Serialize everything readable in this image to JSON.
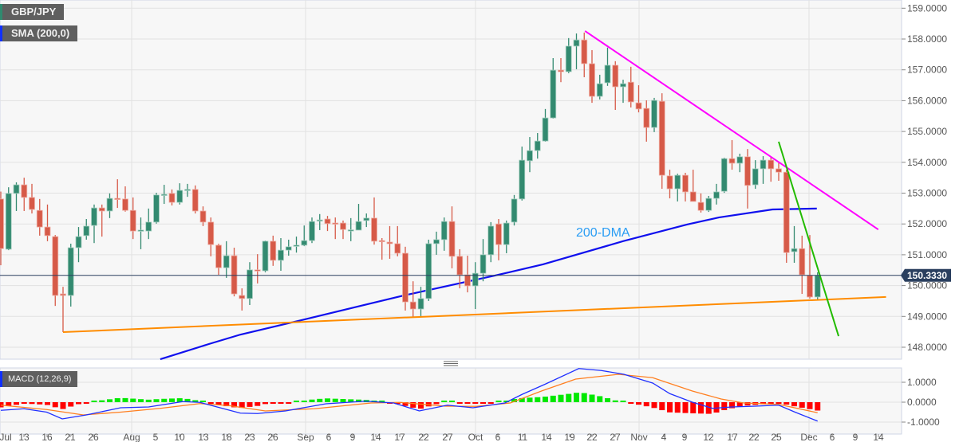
{
  "header": {
    "symbol": "GBP/JPY",
    "indicator_label": "SMA (200,0)",
    "macd_label": "MACD (12,26,9)"
  },
  "chart_data": [
    {
      "type": "candlestick",
      "symbol": "GBP/JPY",
      "y_ticks": [
        "159.0000",
        "158.0000",
        "157.0000",
        "156.0000",
        "155.0000",
        "154.0000",
        "153.0000",
        "152.0000",
        "151.0000",
        "150.0000",
        "149.0000",
        "148.0000"
      ],
      "ylim": [
        147.6,
        159.2
      ],
      "current_price": "150.3330",
      "grid": true,
      "x_ticks": [
        "Jul",
        "13",
        "16",
        "21",
        "26",
        "Aug",
        "5",
        "10",
        "13",
        "18",
        "23",
        "26",
        "Sep",
        "6",
        "9",
        "14",
        "17",
        "22",
        "27",
        "Oct",
        "6",
        "11",
        "14",
        "19",
        "22",
        "27",
        "Nov",
        "4",
        "9",
        "12",
        "17",
        "22",
        "25",
        "Dec",
        "6",
        "9",
        "14"
      ],
      "ohlc_columns": [
        "open",
        "high",
        "low",
        "close"
      ],
      "ohlc": [
        [
          152.81,
          153.05,
          150.66,
          151.2
        ],
        [
          151.18,
          153.19,
          151.15,
          152.99
        ],
        [
          152.99,
          153.35,
          152.42,
          153.27
        ],
        [
          153.27,
          153.5,
          152.42,
          152.86
        ],
        [
          152.86,
          153.3,
          152.34,
          152.47
        ],
        [
          152.44,
          152.81,
          151.62,
          151.9
        ],
        [
          151.9,
          152.63,
          151.44,
          151.62
        ],
        [
          151.59,
          151.64,
          149.34,
          149.68
        ],
        [
          149.73,
          149.96,
          148.49,
          149.68
        ],
        [
          149.68,
          151.36,
          149.32,
          151.23
        ],
        [
          151.23,
          151.9,
          150.76,
          151.59
        ],
        [
          151.62,
          152.16,
          151.49,
          151.93
        ],
        [
          151.95,
          152.63,
          151.38,
          152.52
        ],
        [
          152.52,
          152.63,
          151.59,
          152.42
        ],
        [
          152.42,
          152.99,
          152.19,
          152.83
        ],
        [
          152.83,
          153.45,
          152.52,
          152.81
        ],
        [
          152.81,
          153.22,
          152.4,
          152.44
        ],
        [
          152.44,
          152.86,
          151.51,
          151.77
        ],
        [
          151.77,
          152.21,
          151.18,
          151.8
        ],
        [
          151.77,
          152.5,
          151.51,
          152.06
        ],
        [
          152.06,
          153.01,
          152.01,
          152.94
        ],
        [
          152.94,
          153.27,
          152.65,
          152.96
        ],
        [
          152.99,
          153.12,
          152.6,
          152.7
        ],
        [
          152.7,
          153.32,
          152.63,
          153.09
        ],
        [
          153.09,
          153.3,
          152.88,
          153.12
        ],
        [
          153.12,
          153.25,
          152.34,
          152.42
        ],
        [
          152.42,
          152.57,
          151.93,
          152.06
        ],
        [
          152.06,
          152.21,
          150.95,
          151.33
        ],
        [
          151.31,
          151.36,
          150.35,
          150.58
        ],
        [
          150.58,
          151.44,
          150.25,
          150.97
        ],
        [
          150.97,
          151.23,
          149.65,
          149.73
        ],
        [
          149.68,
          149.91,
          149.19,
          149.58
        ],
        [
          149.58,
          150.76,
          149.37,
          150.51
        ],
        [
          150.51,
          151.02,
          150.07,
          150.48
        ],
        [
          150.48,
          151.46,
          150.43,
          151.44
        ],
        [
          151.44,
          151.62,
          150.64,
          150.82
        ],
        [
          150.82,
          151.54,
          150.48,
          151.15
        ],
        [
          151.15,
          151.49,
          150.97,
          151.26
        ],
        [
          151.28,
          151.59,
          151.07,
          151.31
        ],
        [
          151.31,
          151.95,
          151.28,
          151.46
        ],
        [
          151.46,
          152.21,
          151.38,
          152.08
        ],
        [
          152.11,
          152.32,
          151.8,
          152.13
        ],
        [
          152.16,
          152.26,
          151.77,
          152.01
        ],
        [
          152.03,
          152.21,
          151.51,
          152.02
        ],
        [
          152.03,
          152.11,
          151.51,
          151.82
        ],
        [
          151.8,
          152.19,
          151.44,
          151.81
        ],
        [
          151.8,
          152.65,
          151.8,
          152.08
        ],
        [
          152.11,
          152.34,
          151.9,
          152.19
        ],
        [
          152.19,
          152.86,
          151.33,
          151.44
        ],
        [
          151.46,
          151.54,
          150.84,
          151.44
        ],
        [
          151.41,
          151.93,
          150.87,
          151.36
        ],
        [
          151.36,
          151.93,
          150.95,
          151.05
        ],
        [
          151.05,
          151.26,
          149.19,
          149.47
        ],
        [
          149.47,
          150.14,
          148.98,
          149.24
        ],
        [
          149.24,
          149.96,
          149.01,
          149.58
        ],
        [
          149.58,
          151.49,
          149.5,
          151.36
        ],
        [
          151.36,
          151.75,
          151.0,
          151.49
        ],
        [
          151.49,
          152.21,
          151.13,
          152.08
        ],
        [
          152.08,
          152.57,
          150.56,
          150.95
        ],
        [
          150.95,
          151.18,
          149.91,
          150.35
        ],
        [
          150.35,
          150.97,
          149.78,
          149.99
        ],
        [
          149.99,
          150.76,
          149.24,
          150.4
        ],
        [
          150.4,
          151.51,
          150.14,
          151.0
        ],
        [
          151.0,
          152.06,
          150.76,
          151.93
        ],
        [
          152.0,
          152.16,
          150.82,
          151.33
        ],
        [
          151.33,
          152.11,
          151.05,
          152.03
        ],
        [
          152.06,
          152.94,
          151.95,
          152.81
        ],
        [
          152.81,
          154.51,
          152.76,
          154.07
        ],
        [
          154.05,
          154.82,
          153.68,
          154.38
        ],
        [
          154.38,
          154.95,
          154.12,
          154.69
        ],
        [
          154.69,
          155.73,
          154.67,
          155.44
        ],
        [
          155.44,
          157.38,
          155.42,
          156.99
        ],
        [
          156.99,
          157.38,
          156.6,
          156.94
        ],
        [
          156.94,
          158.03,
          156.89,
          157.77
        ],
        [
          157.77,
          158.18,
          157.02,
          157.97
        ],
        [
          157.97,
          158.21,
          156.76,
          157.2
        ],
        [
          157.2,
          157.64,
          155.93,
          156.14
        ],
        [
          156.14,
          156.84,
          156.04,
          156.55
        ],
        [
          156.58,
          157.72,
          156.48,
          157.15
        ],
        [
          157.15,
          157.28,
          155.7,
          156.45
        ],
        [
          156.45,
          156.68,
          155.93,
          156.55
        ],
        [
          156.6,
          157.1,
          155.78,
          155.96
        ],
        [
          155.93,
          156.5,
          155.62,
          155.73
        ],
        [
          155.75,
          156.01,
          154.67,
          155.13
        ],
        [
          155.13,
          156.09,
          154.98,
          156.01
        ],
        [
          155.98,
          156.24,
          153.14,
          153.58
        ],
        [
          153.56,
          153.76,
          152.83,
          153.14
        ],
        [
          153.14,
          153.63,
          152.73,
          153.58
        ],
        [
          153.58,
          153.66,
          152.73,
          153.04
        ],
        [
          153.04,
          153.76,
          152.73,
          152.73
        ],
        [
          152.7,
          152.99,
          152.37,
          152.44
        ],
        [
          152.44,
          152.91,
          152.39,
          152.83
        ],
        [
          152.83,
          153.3,
          152.63,
          153.04
        ],
        [
          153.06,
          154.15,
          153.01,
          154.12
        ],
        [
          154.12,
          154.72,
          153.76,
          153.97
        ],
        [
          153.97,
          154.28,
          153.68,
          154.18
        ],
        [
          154.18,
          154.43,
          152.5,
          153.25
        ],
        [
          153.27,
          154.07,
          153.14,
          153.79
        ],
        [
          153.79,
          154.2,
          153.3,
          154.07
        ],
        [
          154.07,
          154.18,
          153.37,
          153.79
        ],
        [
          153.79,
          154.0,
          153.4,
          153.68
        ],
        [
          153.68,
          153.76,
          150.74,
          151.07
        ],
        [
          151.1,
          151.93,
          150.74,
          151.2
        ],
        [
          151.2,
          151.62,
          149.73,
          150.35
        ],
        [
          150.33,
          151.64,
          149.58,
          149.63
        ],
        [
          149.63,
          150.43,
          149.55,
          150.33
        ]
      ],
      "overlays": [
        {
          "name": "200-DMA",
          "label": "200-DMA",
          "color": "#1010ee",
          "label_color": "#2a9df4",
          "points_bar_price": [
            [
              20.5,
              147.61
            ],
            [
              26.7,
              148.1
            ],
            [
              30.8,
              148.41
            ],
            [
              39,
              148.9
            ],
            [
              51.3,
              149.65
            ],
            [
              63.6,
              150.33
            ],
            [
              69.7,
              150.69
            ],
            [
              80,
              151.44
            ],
            [
              88.2,
              151.98
            ],
            [
              92.3,
              152.21
            ],
            [
              99.2,
              152.47
            ],
            [
              104.9,
              152.5
            ]
          ]
        },
        {
          "name": "support",
          "color": "#ff8c00",
          "points_bar_price": [
            [
              8,
              148.49
            ],
            [
              113.8,
              149.63
            ]
          ]
        },
        {
          "name": "resistance",
          "color": "#ff00ff",
          "points_bar_price": [
            [
              75.1,
              158.26
            ],
            [
              112.8,
              151.82
            ]
          ]
        },
        {
          "name": "steep-resistance",
          "color": "#22bb00",
          "points_bar_price": [
            [
              100,
              154.67
            ],
            [
              107.7,
              148.36
            ]
          ]
        }
      ],
      "colors": {
        "up": "#338a70",
        "down": "#d65a48",
        "price_line": "#2a3f5f"
      }
    },
    {
      "type": "macd",
      "label": "MACD (12,26,9)",
      "y_ticks": [
        "1.0000",
        "0.0000",
        "-1.0000"
      ],
      "ylim": [
        -1.0,
        1.8
      ],
      "macd_points_bar_value": [
        [
          0,
          -0.41
        ],
        [
          3,
          -0.33
        ],
        [
          5.9,
          -0.5
        ],
        [
          7.9,
          -0.84
        ],
        [
          11,
          -0.64
        ],
        [
          15.4,
          -0.28
        ],
        [
          19,
          -0.24
        ],
        [
          23.4,
          0.03
        ],
        [
          25.6,
          -0.01
        ],
        [
          27.8,
          -0.24
        ],
        [
          30.8,
          -0.55
        ],
        [
          33,
          -0.57
        ],
        [
          36.6,
          -0.44
        ],
        [
          41.8,
          -0.08
        ],
        [
          46.9,
          0.05
        ],
        [
          50.5,
          -0.04
        ],
        [
          53.8,
          -0.44
        ],
        [
          57.4,
          -0.15
        ],
        [
          60.7,
          -0.28
        ],
        [
          64.8,
          -0.04
        ],
        [
          67,
          0.39
        ],
        [
          69.9,
          0.89
        ],
        [
          74.3,
          1.69
        ],
        [
          77.2,
          1.59
        ],
        [
          80.1,
          1.4
        ],
        [
          83.8,
          0.96
        ],
        [
          86,
          0.43
        ],
        [
          88.9,
          0.0
        ],
        [
          91.5,
          -0.31
        ],
        [
          94,
          -0.24
        ],
        [
          97,
          -0.2
        ],
        [
          100,
          -0.15
        ],
        [
          102.1,
          -0.5
        ],
        [
          105,
          -0.95
        ]
      ],
      "signal_points_bar_value": [
        [
          0,
          -0.15
        ],
        [
          5.9,
          -0.37
        ],
        [
          10.6,
          -0.64
        ],
        [
          15.4,
          -0.5
        ],
        [
          20.5,
          -0.31
        ],
        [
          25.6,
          -0.07
        ],
        [
          29.3,
          -0.17
        ],
        [
          34,
          -0.44
        ],
        [
          40.3,
          -0.33
        ],
        [
          47.6,
          -0.04
        ],
        [
          51.3,
          -0.01
        ],
        [
          57.1,
          -0.2
        ],
        [
          61.1,
          -0.21
        ],
        [
          65.5,
          -0.04
        ],
        [
          69.5,
          0.56
        ],
        [
          73.9,
          1.16
        ],
        [
          79.4,
          1.4
        ],
        [
          83.8,
          1.23
        ],
        [
          88.9,
          0.56
        ],
        [
          92.6,
          0.16
        ],
        [
          95.5,
          -0.04
        ],
        [
          100,
          -0.11
        ],
        [
          105,
          -0.53
        ]
      ],
      "colors": {
        "macd": "#2030ff",
        "signal": "#ff7f20",
        "hist_up": "#00e800",
        "hist_down": "#ff0000"
      }
    }
  ]
}
